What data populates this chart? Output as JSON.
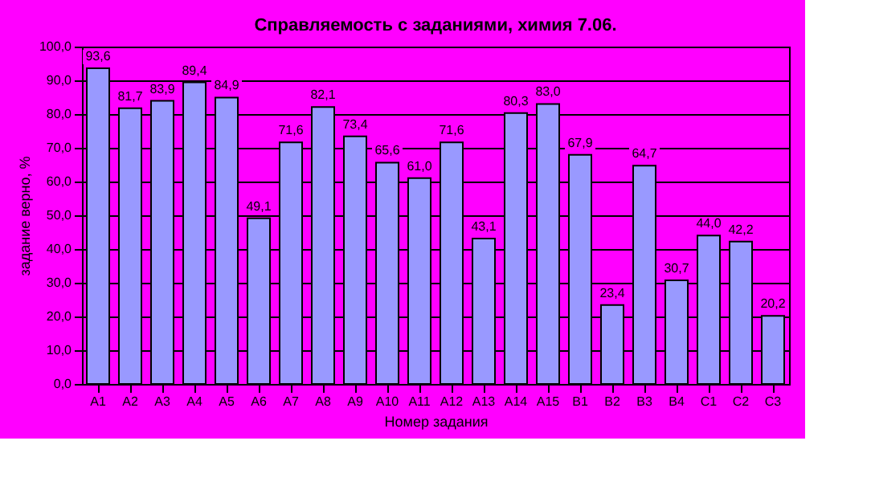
{
  "chart_data": {
    "type": "bar",
    "title": "Справляемость с заданиями, химия 7.06.",
    "xlabel": "Номер задания",
    "ylabel": "задание верно, %",
    "categories": [
      "A1",
      "A2",
      "A3",
      "A4",
      "A5",
      "A6",
      "A7",
      "A8",
      "A9",
      "A10",
      "A11",
      "A12",
      "A13",
      "A14",
      "A15",
      "B1",
      "B2",
      "B3",
      "B4",
      "C1",
      "C2",
      "C3"
    ],
    "values": [
      93.6,
      81.7,
      83.9,
      89.4,
      84.9,
      49.1,
      71.6,
      82.1,
      73.4,
      65.6,
      61.0,
      71.6,
      43.1,
      80.3,
      83.0,
      67.9,
      23.4,
      64.7,
      30.7,
      44.0,
      42.2,
      20.2
    ],
    "value_labels": [
      "93,6",
      "81,7",
      "83,9",
      "89,4",
      "84,9",
      "49,1",
      "71,6",
      "82,1",
      "73,4",
      "65,6",
      "61,0",
      "71,6",
      "43,1",
      "80,3",
      "83,0",
      "67,9",
      "23,4",
      "64,7",
      "30,7",
      "44,0",
      "42,2",
      "20,2"
    ],
    "color": "#9999ff",
    "ylim": [
      0,
      100
    ],
    "yticks": [
      {
        "value": 0,
        "label": "0,0"
      },
      {
        "value": 10,
        "label": "10,0"
      },
      {
        "value": 20,
        "label": "20,0"
      },
      {
        "value": 30,
        "label": "30,0"
      },
      {
        "value": 40,
        "label": "40,0"
      },
      {
        "value": 50,
        "label": "50,0"
      },
      {
        "value": 60,
        "label": "60,0"
      },
      {
        "value": 70,
        "label": "70,0"
      },
      {
        "value": 80,
        "label": "80,0"
      },
      {
        "value": 90,
        "label": "90,0"
      },
      {
        "value": 100,
        "label": "100,0"
      }
    ],
    "grid": "y"
  }
}
